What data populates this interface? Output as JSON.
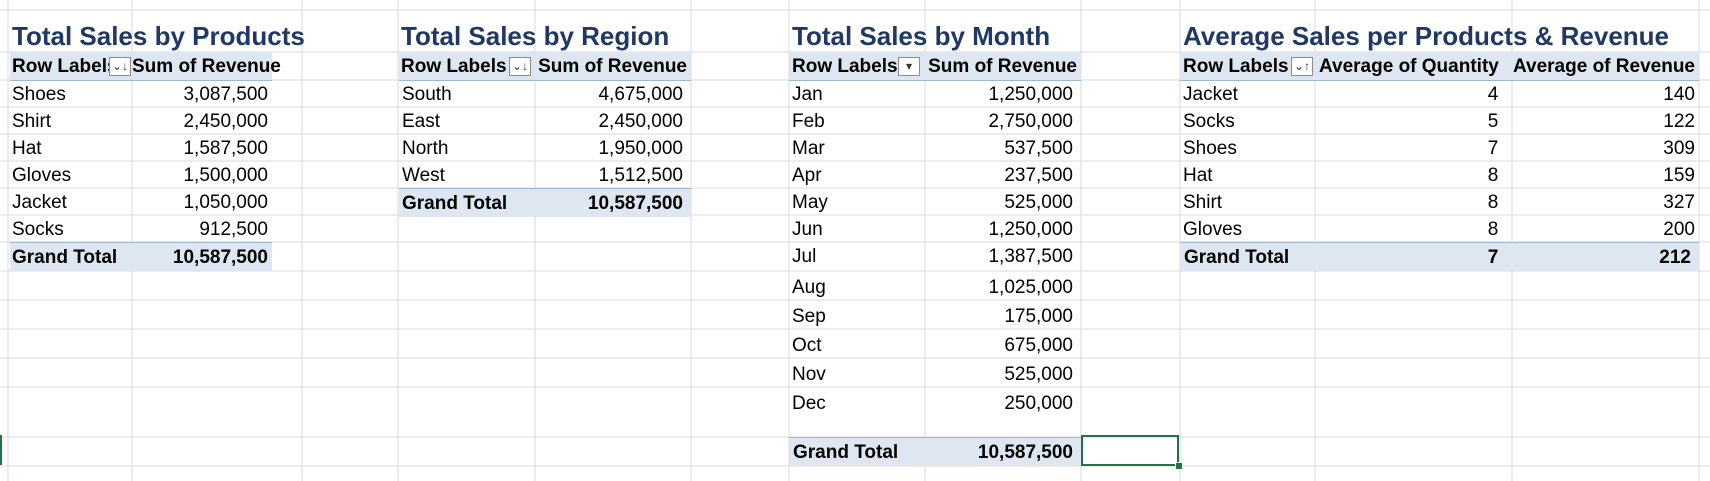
{
  "pivots": {
    "products": {
      "title": "Total Sales by Products",
      "row_labels": "Row Labels",
      "value_header": "Sum of Revenue",
      "filter_icon": "sort-descending-filter-icon",
      "rows": [
        {
          "label": "Shoes",
          "value": "3,087,500"
        },
        {
          "label": "Shirt",
          "value": "2,450,000"
        },
        {
          "label": "Hat",
          "value": "1,587,500"
        },
        {
          "label": "Gloves",
          "value": "1,500,000"
        },
        {
          "label": "Jacket",
          "value": "1,050,000"
        },
        {
          "label": "Socks",
          "value": "912,500"
        }
      ],
      "grand_total_label": "Grand Total",
      "grand_total": "10,587,500"
    },
    "region": {
      "title": "Total Sales by Region",
      "row_labels": "Row Labels",
      "value_header": "Sum of Revenue",
      "filter_icon": "sort-descending-filter-icon",
      "rows": [
        {
          "label": "South",
          "value": "4,675,000"
        },
        {
          "label": "East",
          "value": "2,450,000"
        },
        {
          "label": "North",
          "value": "1,950,000"
        },
        {
          "label": "West",
          "value": "1,512,500"
        }
      ],
      "grand_total_label": "Grand Total",
      "grand_total": "10,587,500"
    },
    "month": {
      "title": "Total Sales by Month",
      "row_labels": "Row Labels",
      "value_header": "Sum of Revenue",
      "filter_icon": "dropdown-filter-icon",
      "rows": [
        {
          "label": "Jan",
          "value": "1,250,000"
        },
        {
          "label": "Feb",
          "value": "2,750,000"
        },
        {
          "label": "Mar",
          "value": "537,500"
        },
        {
          "label": "Apr",
          "value": "237,500"
        },
        {
          "label": "May",
          "value": "525,000"
        },
        {
          "label": "Jun",
          "value": "1,250,000"
        },
        {
          "label": "Jul",
          "value": "1,387,500"
        },
        {
          "label": "Aug",
          "value": "1,025,000"
        },
        {
          "label": "Sep",
          "value": "175,000"
        },
        {
          "label": "Oct",
          "value": "675,000"
        },
        {
          "label": "Nov",
          "value": "525,000"
        },
        {
          "label": "Dec",
          "value": "250,000"
        }
      ],
      "grand_total_label": "Grand Total",
      "grand_total": "10,587,500"
    },
    "average": {
      "title": "Average Sales per Products & Revenue",
      "row_labels": "Row Labels",
      "qty_header": "Average of Quantity",
      "rev_header": "Average of Revenue",
      "filter_icon": "sort-ascending-filter-icon",
      "rows": [
        {
          "label": "Jacket",
          "qty": "4",
          "rev": "140"
        },
        {
          "label": "Socks",
          "qty": "5",
          "rev": "122"
        },
        {
          "label": "Shoes",
          "qty": "7",
          "rev": "309"
        },
        {
          "label": "Hat",
          "qty": "8",
          "rev": "159"
        },
        {
          "label": "Shirt",
          "qty": "8",
          "rev": "327"
        },
        {
          "label": "Gloves",
          "qty": "8",
          "rev": "200"
        }
      ],
      "grand_total_label": "Grand Total",
      "grand_total_qty": "7",
      "grand_total_rev": "212"
    }
  },
  "colors": {
    "title": "#1f3864",
    "header_fill": "#dde6f1",
    "gridline": "#d9d9d9",
    "selection": "#217346"
  }
}
